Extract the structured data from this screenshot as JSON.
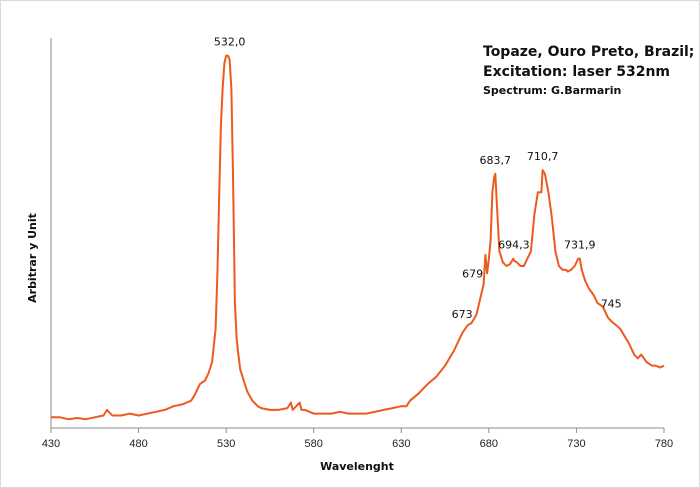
{
  "chart_data": {
    "type": "line",
    "title": [
      "Topaze, Ouro Preto, Brazil;",
      "Excitation: laser 532nm",
      "Spectrum: G.Barmarin"
    ],
    "xlabel": "Wavelenght",
    "ylabel": "Arbitrar y Unit",
    "xlim": [
      430,
      780
    ],
    "ylim": [
      0,
      100
    ],
    "x_ticks": [
      "430",
      "480",
      "530",
      "580",
      "630",
      "680",
      "730",
      "780"
    ],
    "grid": false,
    "line_color": "#ed5a1e",
    "series": [
      {
        "x": [
          430,
          435,
          440,
          445,
          450,
          455,
          460,
          462,
          465,
          470,
          475,
          480,
          485,
          490,
          495,
          500,
          505,
          510,
          512,
          515,
          518,
          520,
          522,
          524,
          525,
          526,
          527,
          528,
          529,
          530,
          531,
          532,
          533,
          534,
          535,
          536,
          537,
          538,
          540,
          542,
          545,
          548,
          550,
          555,
          560,
          565,
          567,
          568,
          570,
          572,
          573,
          575,
          580,
          585,
          590,
          595,
          600,
          605,
          610,
          615,
          620,
          625,
          630,
          633,
          635,
          640,
          645,
          650,
          655,
          660,
          665,
          668,
          670,
          672,
          673,
          675,
          677,
          678,
          679,
          680,
          681,
          682,
          683,
          683.7,
          685,
          686,
          688,
          690,
          692,
          694,
          694.3,
          696,
          698,
          700,
          702,
          704,
          706,
          708,
          710,
          710.7,
          712,
          714,
          716,
          718,
          720,
          722,
          724,
          725,
          727,
          729,
          731,
          731.9,
          733,
          735,
          737,
          740,
          742,
          745,
          748,
          750,
          755,
          760,
          763,
          765,
          767,
          770,
          773,
          775,
          778,
          780
        ],
        "y": [
          1,
          1,
          0.5,
          0.8,
          0.5,
          1,
          1.5,
          3,
          1.5,
          1.5,
          2,
          1.5,
          2,
          2.5,
          3,
          4,
          4.5,
          5.5,
          7,
          10,
          11,
          13,
          16,
          25,
          40,
          60,
          80,
          90,
          97,
          99,
          99,
          98,
          90,
          65,
          32,
          22,
          18,
          14,
          11,
          8,
          5.5,
          4,
          3.5,
          3,
          3,
          3.5,
          5,
          3,
          4,
          5,
          3,
          3,
          2,
          2,
          2,
          2.5,
          2,
          2,
          2,
          2.5,
          3,
          3.5,
          4,
          4,
          5.5,
          7.5,
          10,
          12,
          15,
          19,
          24,
          26,
          26.5,
          28,
          29,
          33,
          37,
          45,
          40,
          44,
          49,
          62,
          66,
          67,
          55,
          46,
          43,
          42,
          42.5,
          44,
          43.5,
          43,
          42,
          42,
          44,
          46,
          56,
          62,
          62,
          68,
          67,
          62,
          55,
          46,
          42,
          41,
          41,
          40.5,
          41,
          42,
          44,
          44,
          41,
          38,
          36,
          34,
          32,
          31,
          28,
          27,
          25,
          21,
          18,
          17,
          18,
          16,
          15,
          15,
          14.5,
          15
        ]
      }
    ],
    "annotations": [
      {
        "text": "532,0",
        "x": 532,
        "y": 99
      },
      {
        "text": "683,7",
        "x": 683.7,
        "y": 67
      },
      {
        "text": "710,7",
        "x": 710.7,
        "y": 68
      },
      {
        "text": "694,3",
        "x": 694.3,
        "y": 44
      },
      {
        "text": "731,9",
        "x": 731.9,
        "y": 44
      },
      {
        "text": "679",
        "x": 679,
        "y": 40
      },
      {
        "text": "673",
        "x": 673,
        "y": 29
      },
      {
        "text": "745",
        "x": 745,
        "y": 34
      }
    ]
  }
}
